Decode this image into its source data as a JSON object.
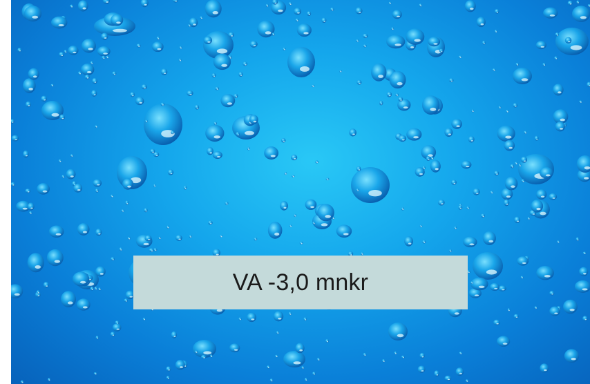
{
  "photo": {
    "subject": "water-droplets",
    "colors": {
      "center": "#29c8f6",
      "mid": "#14a6ec",
      "edge": "#0762bb",
      "drop_dark": "#0657a8",
      "drop_highlight": "#e6fbff"
    }
  },
  "caption": {
    "text": "VA -3,0 mnkr",
    "background": "#c4dada"
  }
}
